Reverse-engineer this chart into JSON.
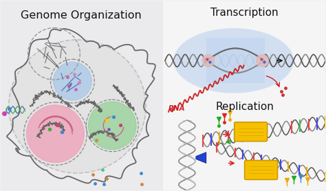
{
  "title_left": "Genome Organization",
  "title_right_top": "Transcription",
  "title_right_bottom": "Replication",
  "rna_label": "RNA",
  "bg_color": "#f0f0f0",
  "fig_width": 4.74,
  "fig_height": 2.78,
  "dpi": 100,
  "title_fontsize": 11.5,
  "subtitle_fontsize": 11,
  "rna_fontsize": 7.5,
  "left_panel_bg": "#e8e8ec",
  "right_panel_bg": "#f2f2f4"
}
